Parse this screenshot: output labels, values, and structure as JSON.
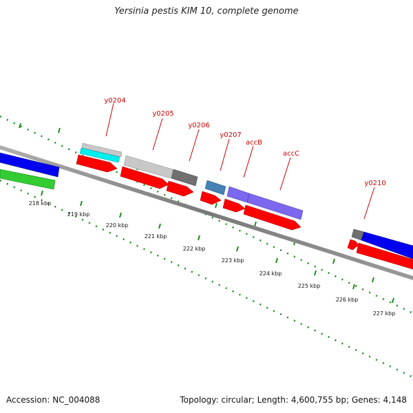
{
  "title": "Yersinia pestis KIM 10, complete genome",
  "footer": {
    "accession": "Accession: NC_004088",
    "stats": "Topology: circular; Length: 4,600,755 bp; Genes: 4,148"
  },
  "scale_labels": [
    "218 kbp",
    "219 kbp",
    "220 kbp",
    "221 kbp",
    "222 kbp",
    "223 kbp",
    "224 kbp",
    "225 kbp",
    "226 kbp",
    "227 kbp"
  ],
  "gene_labels": [
    "y0204",
    "y0205",
    "y0206",
    "y0207",
    "accB",
    "accC",
    "y0210"
  ],
  "colors": {
    "backbone": "#808080",
    "tick": "#1a8c1a",
    "forward_cds": "#ff0000",
    "label": "#cc0000",
    "blue_feature": "#0000ee",
    "green_feature": "#33cc33",
    "cyan_feature": "#00eeee",
    "light_gray_feature": "#c8c8c8",
    "dark_gray_feature": "#707070",
    "steel_feature": "#4682b4",
    "purple_feature": "#7b68ee"
  }
}
